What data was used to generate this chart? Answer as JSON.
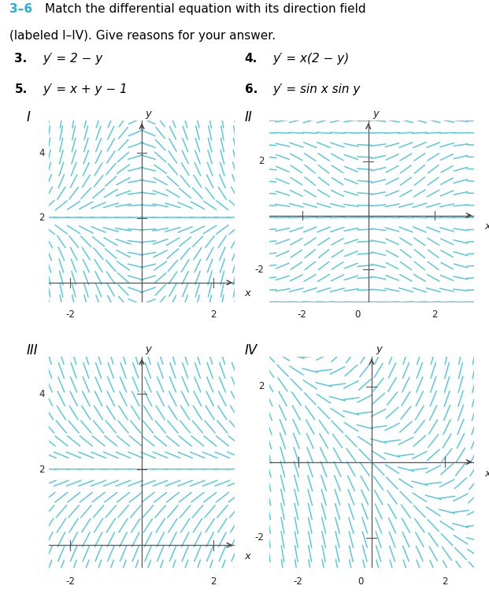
{
  "title_prefix": "3–6",
  "arrow_color": "#5bc8dc",
  "axis_color": "#444444",
  "background_color": "#ffffff",
  "panel_labels": [
    "I",
    "II",
    "III",
    "IV"
  ],
  "grid_I": {
    "xlim": [
      -2.6,
      2.6
    ],
    "ylim": [
      -0.6,
      5.0
    ],
    "xticks": [
      -2,
      0,
      2
    ],
    "yticks": [
      2,
      4
    ],
    "show_x_axis": false
  },
  "grid_II": {
    "xlim": [
      -3.0,
      3.2
    ],
    "ylim": [
      -3.2,
      3.5
    ],
    "xticks": [
      -2,
      0,
      2
    ],
    "yticks": [
      -2,
      2
    ],
    "show_x_axis": true
  },
  "grid_III": {
    "xlim": [
      -2.6,
      2.6
    ],
    "ylim": [
      -0.6,
      5.0
    ],
    "xticks": [
      -2,
      0,
      2
    ],
    "yticks": [
      2,
      4
    ],
    "show_x_axis": false
  },
  "grid_IV": {
    "xlim": [
      -2.8,
      2.8
    ],
    "ylim": [
      -2.8,
      2.8
    ],
    "xticks": [
      -2,
      0,
      2
    ],
    "yticks": [
      -2,
      2
    ],
    "show_x_axis": true
  },
  "n_grid": 16,
  "segment_scale": 0.22
}
